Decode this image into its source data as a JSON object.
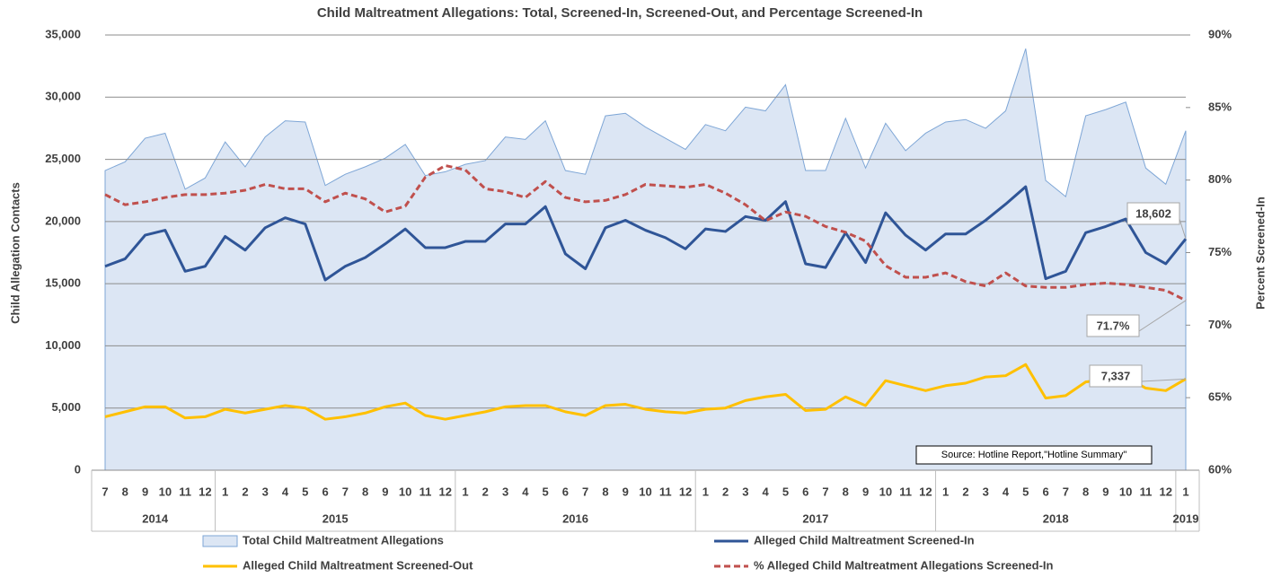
{
  "chart_data": {
    "type": "line",
    "title": "Child Maltreatment Allegations: Total, Screened-In, Screened-Out, and Percentage Screened-In",
    "y_label": "Child Allegation Contacts",
    "y2_label": "Percent Screened-In",
    "source": "Source: Hotline Report,\"Hotline Summary\"",
    "categories": [
      "7",
      "8",
      "9",
      "10",
      "11",
      "12",
      "1",
      "2",
      "3",
      "4",
      "5",
      "6",
      "7",
      "8",
      "9",
      "10",
      "11",
      "12",
      "1",
      "2",
      "3",
      "4",
      "5",
      "6",
      "7",
      "8",
      "9",
      "10",
      "11",
      "12",
      "1",
      "2",
      "3",
      "4",
      "5",
      "6",
      "7",
      "8",
      "9",
      "10",
      "11",
      "12",
      "1",
      "2",
      "3",
      "4",
      "5",
      "6",
      "7",
      "8",
      "9",
      "10",
      "11",
      "12",
      "1"
    ],
    "year_groups": [
      {
        "label": "2014",
        "count": 6
      },
      {
        "label": "2015",
        "count": 12
      },
      {
        "label": "2016",
        "count": 12
      },
      {
        "label": "2017",
        "count": 12
      },
      {
        "label": "2018",
        "count": 12
      },
      {
        "label": "2019",
        "count": 1
      }
    ],
    "ylim": [
      0,
      35000
    ],
    "yticks": [
      0,
      {
        "value": 5000,
        "label": "5,000"
      },
      {
        "value": 10000,
        "label": "10,000"
      },
      {
        "value": 15000,
        "label": "15,000"
      },
      {
        "value": 20000,
        "label": "20,000"
      },
      {
        "value": 25000,
        "label": "25,000"
      },
      {
        "value": 30000,
        "label": "30,000"
      },
      {
        "value": 35000,
        "label": "35,000"
      }
    ],
    "y2lim": [
      60,
      90
    ],
    "y2ticks": [
      {
        "value": 60,
        "label": "60%"
      },
      {
        "value": 65,
        "label": "65%"
      },
      {
        "value": 70,
        "label": "70%"
      },
      {
        "value": 75,
        "label": "75%"
      },
      {
        "value": 80,
        "label": "80%"
      },
      {
        "value": 85,
        "label": "85%"
      },
      {
        "value": 90,
        "label": "90%"
      }
    ],
    "grid": true,
    "series": [
      {
        "name": "Total Child Maltreatment Allegations",
        "kind": "area",
        "color": "#dce6f4",
        "edge": "#7ea6d6",
        "values": [
          24100,
          24800,
          26700,
          27100,
          22600,
          23500,
          26400,
          24400,
          26800,
          28100,
          28000,
          22900,
          23800,
          24400,
          25100,
          26200,
          23700,
          24000,
          24600,
          24900,
          26800,
          26600,
          28100,
          24100,
          23800,
          28500,
          28700,
          27600,
          26700,
          25800,
          27800,
          27300,
          29200,
          28900,
          31000,
          24100,
          24100,
          28300,
          24300,
          27900,
          25700,
          27100,
          28000,
          28200,
          27500,
          28900,
          33900,
          23300,
          22000,
          28500,
          29000,
          29600,
          24300,
          23000,
          27300
        ]
      },
      {
        "name": "Alleged Child Maltreatment Screened-In",
        "kind": "line",
        "color": "#2f5597",
        "values": [
          16400,
          17000,
          18900,
          19300,
          16000,
          16400,
          18800,
          17700,
          19500,
          20300,
          19800,
          15300,
          16400,
          17100,
          18200,
          19400,
          17900,
          17900,
          18400,
          18400,
          19800,
          19800,
          21200,
          17400,
          16200,
          19500,
          20100,
          19300,
          18700,
          17800,
          19400,
          19200,
          20400,
          20100,
          21600,
          16600,
          16300,
          19100,
          16700,
          20700,
          18900,
          17700,
          19000,
          19000,
          20100,
          21400,
          22800,
          15400,
          16000,
          19100,
          19600,
          20200,
          17500,
          16600,
          18602
        ],
        "value_labels": [
          null,
          null,
          null,
          null,
          null,
          null,
          null,
          null,
          null,
          null,
          null,
          null,
          null,
          null,
          null,
          null,
          null,
          null,
          null,
          null,
          null,
          null,
          null,
          null,
          null,
          null,
          null,
          null,
          null,
          null,
          null,
          null,
          null,
          null,
          null,
          null,
          null,
          null,
          null,
          null,
          null,
          null,
          null,
          null,
          null,
          null,
          null,
          null,
          null,
          null,
          null,
          null,
          null,
          null,
          "18,602"
        ]
      },
      {
        "name": "Alleged Child Maltreatment Screened-Out",
        "kind": "line",
        "color": "#ffc000",
        "values": [
          4300,
          4700,
          5100,
          5100,
          4200,
          4300,
          4900,
          4600,
          4900,
          5200,
          5000,
          4100,
          4300,
          4600,
          5100,
          5400,
          4400,
          4100,
          4400,
          4700,
          5100,
          5200,
          5200,
          4700,
          4400,
          5200,
          5300,
          4900,
          4700,
          4600,
          4900,
          5000,
          5600,
          5900,
          6100,
          4800,
          4900,
          5900,
          5200,
          7200,
          6800,
          6400,
          6800,
          7000,
          7500,
          7600,
          8500,
          5800,
          6000,
          7100,
          7300,
          7500,
          6600,
          6400,
          7337
        ],
        "value_labels": [
          null,
          null,
          null,
          null,
          null,
          null,
          null,
          null,
          null,
          null,
          null,
          null,
          null,
          null,
          null,
          null,
          null,
          null,
          null,
          null,
          null,
          null,
          null,
          null,
          null,
          null,
          null,
          null,
          null,
          null,
          null,
          null,
          null,
          null,
          null,
          null,
          null,
          null,
          null,
          null,
          null,
          null,
          null,
          null,
          null,
          null,
          null,
          null,
          null,
          null,
          null,
          null,
          null,
          null,
          "7,337"
        ]
      },
      {
        "name": "% Alleged Child Maltreatment Allegations Screened-In",
        "kind": "line",
        "dashed": true,
        "axis": "y2",
        "color": "#c0504d",
        "values": [
          79.0,
          78.3,
          78.5,
          78.8,
          79.0,
          79.0,
          79.1,
          79.3,
          79.7,
          79.4,
          79.4,
          78.5,
          79.1,
          78.7,
          77.8,
          78.2,
          80.2,
          81.0,
          80.7,
          79.4,
          79.2,
          78.8,
          79.9,
          78.8,
          78.5,
          78.6,
          79.0,
          79.7,
          79.6,
          79.5,
          79.7,
          79.1,
          78.3,
          77.2,
          77.8,
          77.5,
          76.8,
          76.4,
          75.8,
          74.1,
          73.3,
          73.3,
          73.6,
          73.0,
          72.7,
          73.6,
          72.7,
          72.6,
          72.6,
          72.8,
          72.9,
          72.8,
          72.6,
          72.4,
          71.7
        ],
        "value_labels": [
          null,
          null,
          null,
          null,
          null,
          null,
          null,
          null,
          null,
          null,
          null,
          null,
          null,
          null,
          null,
          null,
          null,
          null,
          null,
          null,
          null,
          null,
          null,
          null,
          null,
          null,
          null,
          null,
          null,
          null,
          null,
          null,
          null,
          null,
          null,
          null,
          null,
          null,
          null,
          null,
          null,
          null,
          null,
          null,
          null,
          null,
          null,
          null,
          null,
          null,
          null,
          null,
          null,
          null,
          "71.7%"
        ]
      }
    ]
  }
}
